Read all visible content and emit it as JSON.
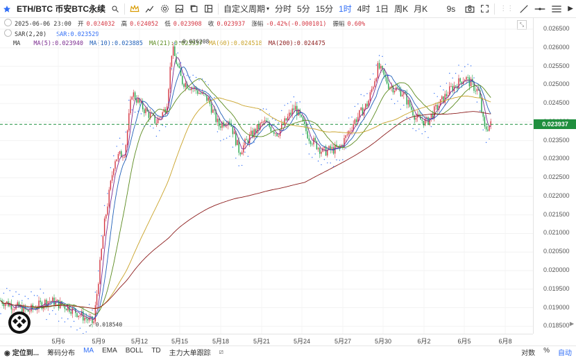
{
  "toolbar": {
    "symbol": "ETH/BTC 币安BTC永续",
    "custom_period": "自定义周期",
    "intervals": [
      "分时",
      "5分",
      "15分",
      "1时",
      "4时",
      "1日",
      "周K",
      "月K"
    ],
    "active_interval": "1时",
    "seconds_label": "9s"
  },
  "legend": {
    "datetime": "2025-06-06 23:00",
    "open_label": "开",
    "open": "0.024032",
    "high_label": "高",
    "high": "0.024052",
    "low_label": "低",
    "low": "0.023908",
    "close_label": "收",
    "close": "0.023937",
    "change_label": "涨幅",
    "change": "-0.42%(-0.000101)",
    "amplitude_label": "振幅",
    "amplitude": "0.60%",
    "sar_name": "SAR(2,20)",
    "sar_value": "SAR:0.023529",
    "ma_name": "MA",
    "ma5": "MA(5):0.023940",
    "ma10": "MA(10):0.023885",
    "ma21": "MA(21):0.023937",
    "ma60": "MA(60):0.024518",
    "ma200": "MA(200):0.024475"
  },
  "colors": {
    "up": "#d4333f",
    "down": "#22a34a",
    "ma5": "#7b2a8f",
    "ma10": "#1f5fb8",
    "ma21": "#5a8a1e",
    "ma60": "#c9a227",
    "ma200": "#8b1a1a",
    "sar": "#2f6df6",
    "accent": "#2f6df6",
    "current_price_bg": "#1f8f3e"
  },
  "price_axis": {
    "labels": [
      "0.026500",
      "0.026000",
      "0.025500",
      "0.025000",
      "0.024500",
      "0.024000",
      "0.023500",
      "0.023000",
      "0.022500",
      "0.022000",
      "0.021500",
      "0.021000",
      "0.020500",
      "0.020000",
      "0.019500",
      "0.019000",
      "0.018500"
    ],
    "current_price": "0.023937"
  },
  "chart_data": {
    "type": "candlestick",
    "x_labels": [
      "5月6",
      "5月9",
      "5月12",
      "5月15",
      "5月18",
      "5月21",
      "5月24",
      "5月27",
      "5月30",
      "6月2",
      "6月5",
      "6月8"
    ],
    "ylim": [
      0.0183,
      0.0268
    ],
    "high_annotation": "0.026208",
    "low_annotation": "0.018540",
    "current_price": 0.023937
  },
  "bottombar": {
    "locate": "定位到...",
    "items": [
      "筹码分布",
      "MA",
      "EMA",
      "BOLL",
      "TD",
      "主力大单跟踪"
    ],
    "active": "MA",
    "right_items": [
      "对数",
      "%",
      "自动"
    ]
  }
}
